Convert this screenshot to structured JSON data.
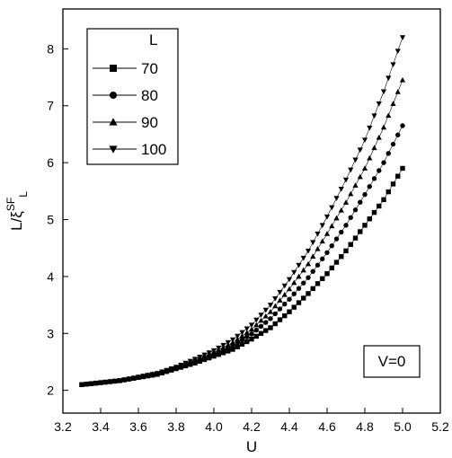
{
  "chart_data": {
    "type": "scatter",
    "xlabel": "U",
    "ylabel": {
      "main": "L/ξ",
      "sup": "SF",
      "sub": "L"
    },
    "xlim": [
      3.2,
      5.2
    ],
    "ylim": [
      1.6,
      8.7
    ],
    "xticks": [
      "3.2",
      "3.4",
      "3.6",
      "3.8",
      "4.0",
      "4.2",
      "4.4",
      "4.6",
      "4.8",
      "5.0",
      "5.2"
    ],
    "yticks": [
      "2",
      "3",
      "4",
      "5",
      "6",
      "7",
      "8"
    ],
    "legend_title": "L",
    "annotation": "V=0",
    "grid": false,
    "legend_position": "top-left",
    "series": [
      {
        "name": "70",
        "marker": "square",
        "x": [
          3.3,
          3.5,
          3.7,
          3.8,
          3.9,
          4.0,
          4.1,
          4.2,
          4.3,
          4.4,
          4.5,
          4.6,
          4.7,
          4.8,
          4.9,
          5.0
        ],
        "y": [
          2.1,
          2.17,
          2.28,
          2.38,
          2.48,
          2.6,
          2.72,
          2.9,
          3.1,
          3.38,
          3.7,
          4.05,
          4.45,
          4.9,
          5.35,
          5.9
        ]
      },
      {
        "name": "80",
        "marker": "circle",
        "x": [
          3.3,
          3.5,
          3.7,
          3.8,
          3.9,
          4.0,
          4.1,
          4.2,
          4.3,
          4.4,
          4.5,
          4.6,
          4.7,
          4.8,
          4.9,
          5.0
        ],
        "y": [
          2.1,
          2.17,
          2.29,
          2.39,
          2.51,
          2.64,
          2.79,
          2.99,
          3.26,
          3.6,
          3.98,
          4.42,
          4.9,
          5.44,
          6.0,
          6.65
        ]
      },
      {
        "name": "90",
        "marker": "triangle-up",
        "x": [
          3.3,
          3.5,
          3.7,
          3.8,
          3.9,
          4.0,
          4.1,
          4.2,
          4.3,
          4.4,
          4.5,
          4.6,
          4.7,
          4.8,
          4.9,
          5.0
        ],
        "y": [
          2.1,
          2.17,
          2.3,
          2.4,
          2.53,
          2.67,
          2.84,
          3.07,
          3.38,
          3.78,
          4.22,
          4.75,
          5.3,
          5.9,
          6.62,
          7.45
        ]
      },
      {
        "name": "100",
        "marker": "triangle-down",
        "x": [
          3.3,
          3.5,
          3.7,
          3.8,
          3.9,
          4.0,
          4.1,
          4.2,
          4.3,
          4.4,
          4.5,
          4.6,
          4.7,
          4.8,
          4.9,
          5.0
        ],
        "y": [
          2.1,
          2.17,
          2.3,
          2.41,
          2.55,
          2.7,
          2.89,
          3.15,
          3.5,
          3.95,
          4.45,
          5.05,
          5.7,
          6.4,
          7.25,
          8.2
        ]
      }
    ]
  }
}
